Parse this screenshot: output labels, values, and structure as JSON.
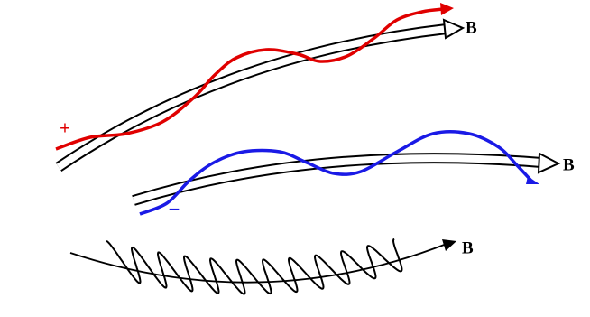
{
  "field_lines": [
    {
      "label": "B"
    },
    {
      "label": "B"
    },
    {
      "label": "B"
    }
  ],
  "particles": [
    {
      "label": "+"
    },
    {
      "label": "−"
    }
  ]
}
